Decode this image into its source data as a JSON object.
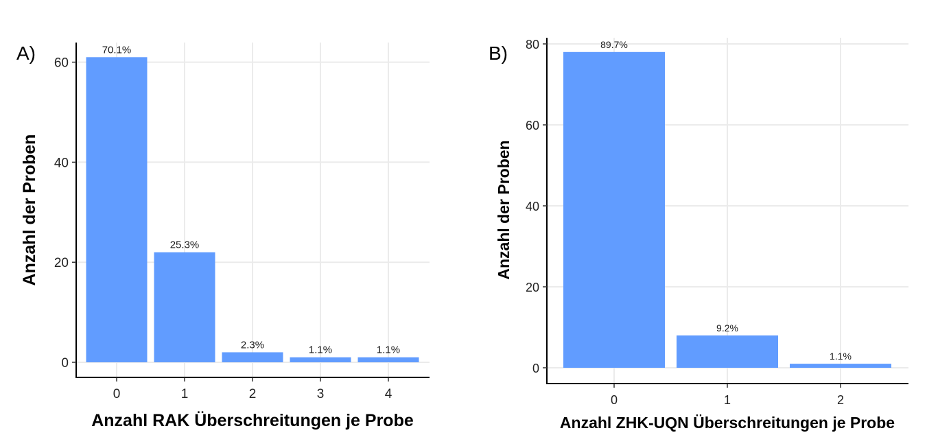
{
  "bar_color": "#619CFF",
  "chart_data": [
    {
      "type": "bar",
      "panel_label": "A)",
      "categories": [
        "0",
        "1",
        "2",
        "3",
        "4"
      ],
      "values": [
        61,
        22,
        2,
        1,
        1
      ],
      "data_labels": [
        "70.1%",
        "25.3%",
        "2.3%",
        "1.1%",
        "1.1%"
      ],
      "xlabel": "Anzahl RAK Überschreitungen je Probe",
      "ylabel": "Anzahl der Proben",
      "yticks": [
        0,
        20,
        40,
        60
      ],
      "ylim": [
        0,
        64
      ],
      "grid": true
    },
    {
      "type": "bar",
      "panel_label": "B)",
      "categories": [
        "0",
        "1",
        "2"
      ],
      "values": [
        78,
        8,
        1
      ],
      "data_labels": [
        "89.7%",
        "9.2%",
        "1.1%"
      ],
      "xlabel": "Anzahl ZHK-UQN Überschreitungen je Probe",
      "ylabel": "Anzahl der Proben",
      "yticks": [
        0,
        20,
        40,
        60,
        80
      ],
      "ylim": [
        0,
        82
      ],
      "grid": true
    }
  ]
}
